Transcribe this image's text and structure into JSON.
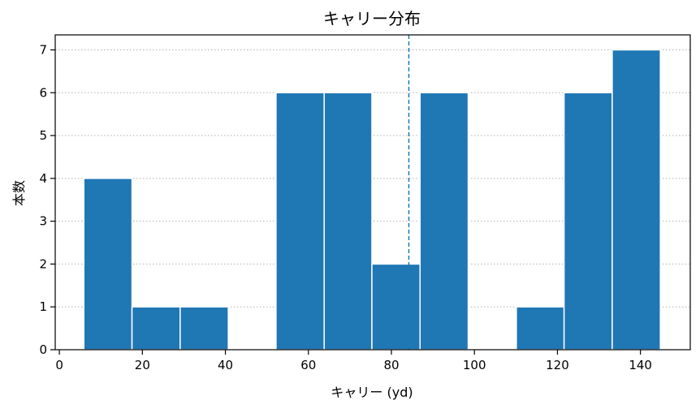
{
  "chart_data": {
    "type": "bar",
    "subtype": "histogram",
    "title": "キャリー分布",
    "xlabel": "キャリー (yd)",
    "ylabel": "本数",
    "xlim": [
      -1,
      152
    ],
    "ylim": [
      0,
      7.35
    ],
    "xticks": [
      0,
      20,
      40,
      60,
      80,
      100,
      120,
      140
    ],
    "yticks": [
      0,
      1,
      2,
      3,
      4,
      5,
      6,
      7
    ],
    "bins": [
      {
        "x0": 5.9,
        "x1": 17.5,
        "count": 4
      },
      {
        "x0": 17.5,
        "x1": 29.1,
        "count": 1
      },
      {
        "x0": 29.1,
        "x1": 40.7,
        "count": 1
      },
      {
        "x0": 40.7,
        "x1": 52.2,
        "count": 0
      },
      {
        "x0": 52.2,
        "x1": 63.8,
        "count": 6
      },
      {
        "x0": 63.8,
        "x1": 75.3,
        "count": 6
      },
      {
        "x0": 75.3,
        "x1": 86.9,
        "count": 2
      },
      {
        "x0": 86.9,
        "x1": 98.5,
        "count": 6
      },
      {
        "x0": 98.5,
        "x1": 110.1,
        "count": 0
      },
      {
        "x0": 110.1,
        "x1": 121.6,
        "count": 1
      },
      {
        "x0": 121.6,
        "x1": 133.2,
        "count": 6
      },
      {
        "x0": 133.2,
        "x1": 144.8,
        "count": 7
      }
    ],
    "reference_line": {
      "x": 84.2,
      "style": "dashed"
    },
    "grid": {
      "x": false,
      "y": true,
      "style": "dotted"
    },
    "colors": {
      "bar": "#1f77b4",
      "reference_line": "#1f77b4"
    }
  }
}
